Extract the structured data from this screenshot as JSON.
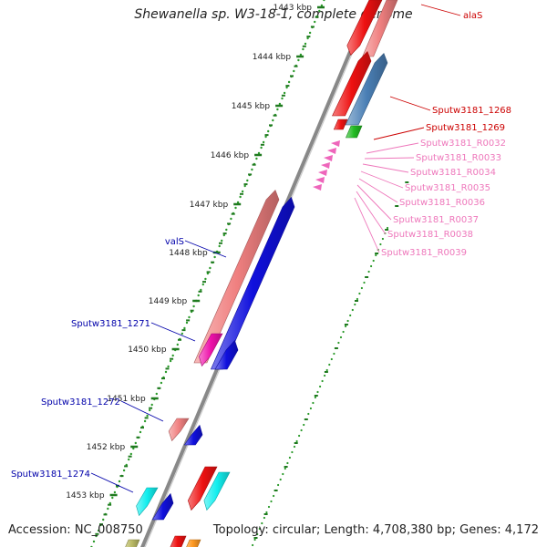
{
  "title": "Shewanella sp. W3-18-1, complete genome",
  "accession": "Accession: NC_008750",
  "summary": "Topology: circular; Length: 4,708,380 bp; Genes: 4,172",
  "ruler": [
    "1443 kbp",
    "1444 kbp",
    "1445 kbp",
    "1446 kbp",
    "1447 kbp",
    "1448 kbp",
    "1449 kbp",
    "1450 kbp",
    "1451 kbp",
    "1452 kbp",
    "1453 kbp"
  ],
  "labels": {
    "alaS": "alaS",
    "r1268": "Sputw3181_1268",
    "r1269": "Sputw3181_1269",
    "r0032": "Sputw3181_R0032",
    "r0033": "Sputw3181_R0033",
    "r0034": "Sputw3181_R0034",
    "r0035": "Sputw3181_R0035",
    "r0036": "Sputw3181_R0036",
    "r0037": "Sputw3181_R0037",
    "r0038": "Sputw3181_R0038",
    "r0039": "Sputw3181_R0039",
    "valS": "valS",
    "g1271": "Sputw3181_1271",
    "g1272": "Sputw3181_1272",
    "g1274": "Sputw3181_1274"
  },
  "colors": {
    "backbone": "#888888",
    "ruler_dots": "#2a9a2a",
    "ruler_ticks": "#1f7a1f",
    "red_gene": "#ee1111",
    "salmon_gene": "#f08080",
    "blue_gene": "#1010dd",
    "steel_gene": "#4a7fb5",
    "green_gene": "#22bb22",
    "magenta_gene": "#ee11aa",
    "cyan_gene": "#11eeee",
    "pink_trna": "#ee66bb",
    "label_red": "#cc0000",
    "label_pink": "#ee77bb",
    "label_blue": "#0000aa"
  }
}
